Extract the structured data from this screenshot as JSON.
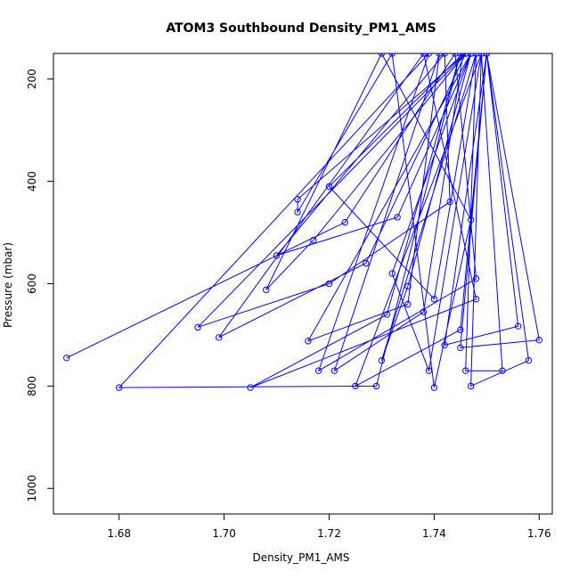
{
  "chart_data": {
    "type": "line",
    "title": "ATOM3 Southbound Density_PM1_AMS",
    "xlabel": "Density_PM1_AMS",
    "ylabel": "Pressure (mbar)",
    "xlim": [
      1.6675,
      1.7625
    ],
    "ylim": [
      1050,
      150
    ],
    "y_reversed": true,
    "x_ticks": [
      1.68,
      1.7,
      1.72,
      1.74,
      1.76
    ],
    "x_tick_labels": [
      "1.68",
      "1.70",
      "1.72",
      "1.74",
      "1.76"
    ],
    "y_ticks": [
      200,
      400,
      600,
      800,
      1000
    ],
    "y_tick_labels": [
      "200",
      "400",
      "600",
      "800",
      "1000"
    ],
    "grid": false,
    "color": "#0000ff",
    "marker": "open-circle",
    "series": [
      {
        "points": [
          [
            1.67,
            745
          ],
          [
            1.723,
            480
          ],
          [
            1.744,
            150
          ],
          [
            1.748,
            590
          ],
          [
            1.718,
            770
          ],
          [
            1.739,
            150
          ],
          [
            1.68,
            803
          ],
          [
            1.729,
            800
          ],
          [
            1.745,
            150
          ],
          [
            1.731,
            660
          ],
          [
            1.705,
            803
          ],
          [
            1.748,
            630
          ],
          [
            1.738,
            150
          ],
          [
            1.699,
            705
          ],
          [
            1.727,
            560
          ],
          [
            1.746,
            150
          ],
          [
            1.714,
            435
          ],
          [
            1.714,
            460
          ],
          [
            1.732,
            150
          ],
          [
            1.74,
            803
          ],
          [
            1.747,
            475
          ],
          [
            1.73,
            150
          ],
          [
            1.708,
            612
          ],
          [
            1.717,
            515
          ],
          [
            1.746,
            150
          ],
          [
            1.695,
            685
          ],
          [
            1.72,
            600
          ],
          [
            1.743,
            440
          ],
          [
            1.742,
            150
          ],
          [
            1.71,
            545
          ],
          [
            1.733,
            470
          ],
          [
            1.747,
            150
          ],
          [
            1.716,
            712
          ],
          [
            1.735,
            640
          ],
          [
            1.741,
            150
          ],
          [
            1.721,
            770
          ],
          [
            1.738,
            655
          ],
          [
            1.7455,
            150
          ],
          [
            1.72,
            410
          ],
          [
            1.74,
            630
          ],
          [
            1.748,
            150
          ],
          [
            1.73,
            750
          ],
          [
            1.735,
            605
          ],
          [
            1.747,
            150
          ],
          [
            1.732,
            580
          ],
          [
            1.739,
            770
          ],
          [
            1.749,
            150
          ],
          [
            1.725,
            800
          ],
          [
            1.745,
            690
          ],
          [
            1.75,
            150
          ],
          [
            1.756,
            683
          ],
          [
            1.742,
            720
          ],
          [
            1.75,
            150
          ],
          [
            1.76,
            710
          ],
          [
            1.745,
            725
          ],
          [
            1.75,
            150
          ],
          [
            1.758,
            750
          ],
          [
            1.747,
            800
          ],
          [
            1.749,
            150
          ],
          [
            1.753,
            770
          ],
          [
            1.746,
            770
          ],
          [
            1.748,
            150
          ]
        ]
      }
    ]
  }
}
